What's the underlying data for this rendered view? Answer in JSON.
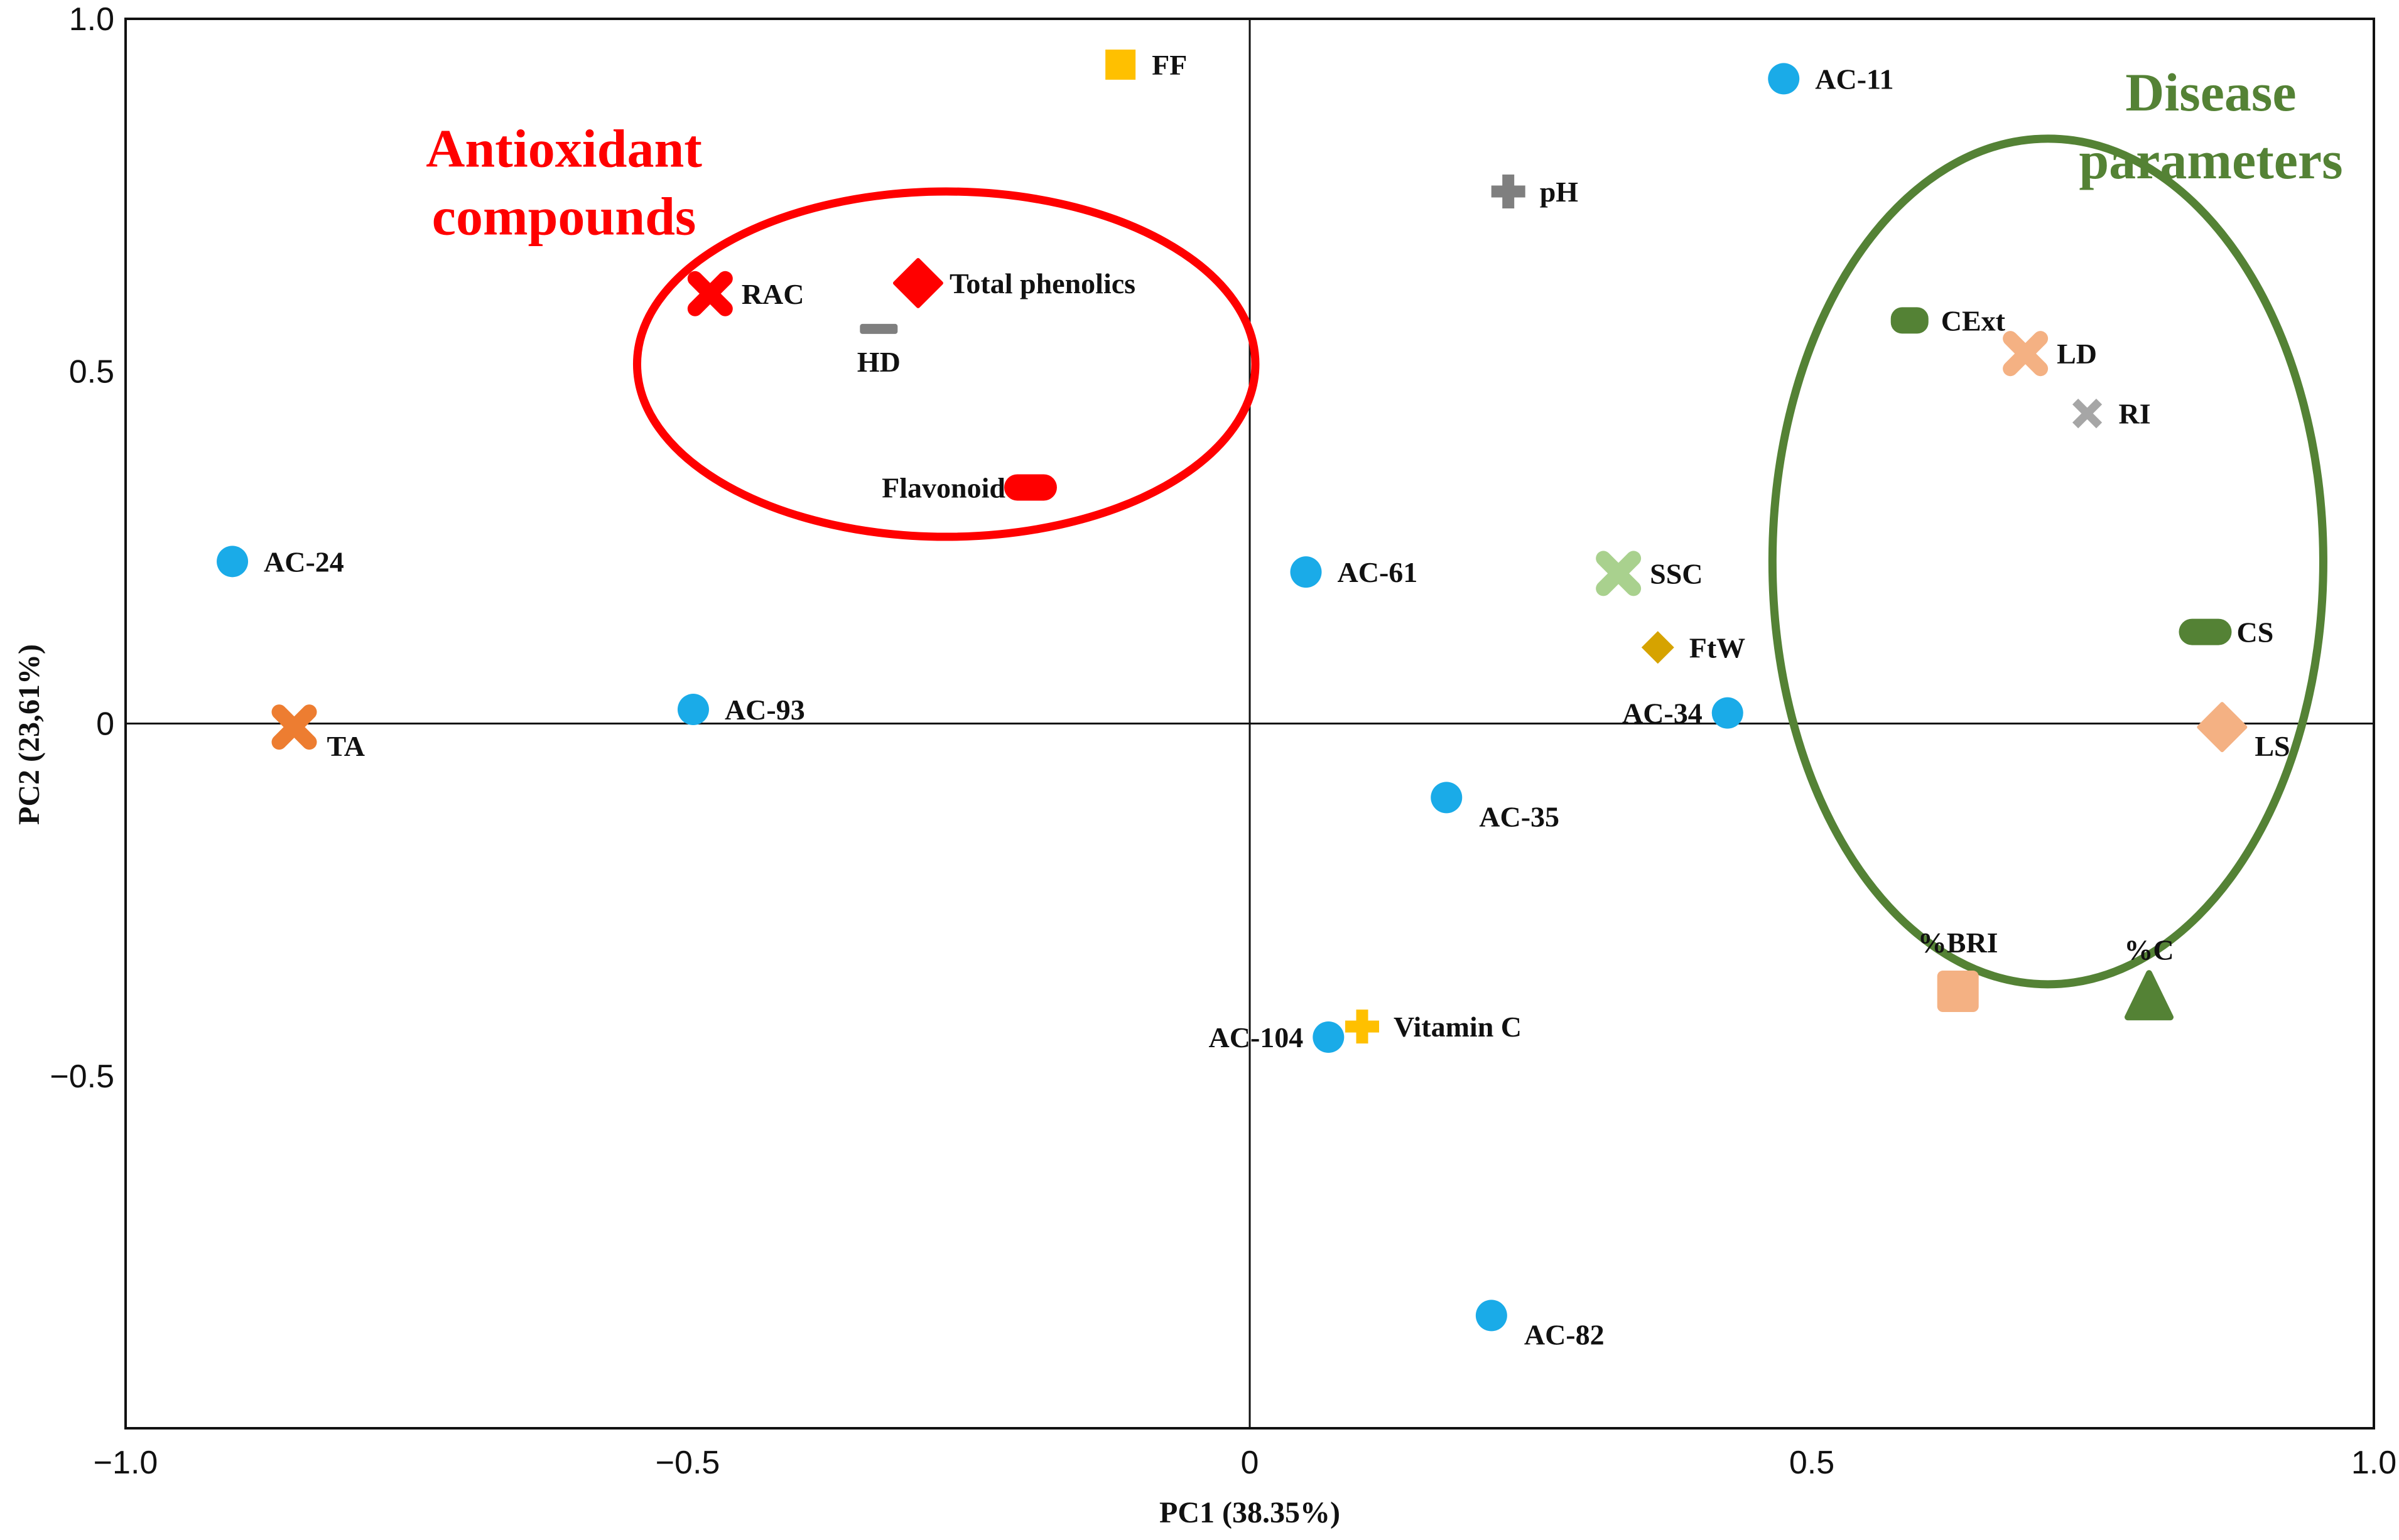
{
  "chart_data": {
    "type": "scatter",
    "title": "",
    "xlabel": "PC1 (38.35%)",
    "ylabel": "PC2 (23,61%)",
    "xlim": [
      -1.0,
      1.0
    ],
    "ylim": [
      -1.0,
      1.0
    ],
    "grid": false,
    "x_ticks": [
      {
        "value": -1.0,
        "label": "−1.0"
      },
      {
        "value": -0.5,
        "label": "−0.5"
      },
      {
        "value": 0,
        "label": "0"
      },
      {
        "value": 0.5,
        "label": "0.5"
      },
      {
        "value": 1.0,
        "label": "1.0"
      }
    ],
    "y_ticks": [
      {
        "value": 1.0,
        "label": "1.0"
      },
      {
        "value": 0.5,
        "label": "0.5"
      },
      {
        "value": 0,
        "label": "0"
      },
      {
        "value": -0.5,
        "label": "−0.5"
      }
    ],
    "colors": {
      "accession": "#1AABE8",
      "red": "#FF0000",
      "darkgreen": "#548235",
      "lightgreen": "#A9D18E",
      "salmon": "#F4B183",
      "orange": "#ED7D31",
      "gold": "#FFC000",
      "mustard": "#D6A300",
      "gray": "#7F7F7F",
      "lightgray": "#A6A6A6"
    },
    "points": [
      {
        "label": "AC-11",
        "x": 0.475,
        "y": 0.915,
        "shape": "circle",
        "color": "accession",
        "anchor": "right"
      },
      {
        "label": "AC-24",
        "x": -0.905,
        "y": 0.23,
        "shape": "circle",
        "color": "accession",
        "anchor": "right"
      },
      {
        "label": "AC-93",
        "x": -0.495,
        "y": 0.02,
        "shape": "circle",
        "color": "accession",
        "anchor": "right"
      },
      {
        "label": "AC-61",
        "x": 0.05,
        "y": 0.215,
        "shape": "circle",
        "color": "accession",
        "anchor": "right"
      },
      {
        "label": "AC-34",
        "x": 0.425,
        "y": 0.015,
        "shape": "circle",
        "color": "accession",
        "anchor": "left"
      },
      {
        "label": "AC-35",
        "x": 0.175,
        "y": -0.105,
        "shape": "circle",
        "color": "accession",
        "anchor": "right-below"
      },
      {
        "label": "AC-104",
        "x": 0.07,
        "y": -0.445,
        "shape": "circle",
        "color": "accession",
        "anchor": "left"
      },
      {
        "label": "AC-82",
        "x": 0.215,
        "y": -0.84,
        "shape": "circle",
        "color": "accession",
        "anchor": "right-below"
      },
      {
        "label": "FF",
        "x": -0.115,
        "y": 0.935,
        "shape": "square",
        "color": "gold",
        "anchor": "right"
      },
      {
        "label": "pH",
        "x": 0.23,
        "y": 0.755,
        "shape": "plus",
        "color": "gray",
        "anchor": "right"
      },
      {
        "label": "RAC",
        "x": -0.48,
        "y": 0.61,
        "shape": "cross",
        "color": "red",
        "anchor": "right"
      },
      {
        "label": "Total phenolics",
        "x": -0.295,
        "y": 0.625,
        "shape": "diamond",
        "color": "red",
        "anchor": "right"
      },
      {
        "label": "HD",
        "x": -0.33,
        "y": 0.56,
        "shape": "dash",
        "color": "gray",
        "anchor": "below"
      },
      {
        "label": "Flavonoid",
        "x": -0.195,
        "y": 0.335,
        "shape": "pill",
        "color": "red",
        "anchor": "left"
      },
      {
        "label": "SSC",
        "x": 0.328,
        "y": 0.213,
        "shape": "cross",
        "color": "lightgreen",
        "anchor": "right"
      },
      {
        "label": "FtW",
        "x": 0.363,
        "y": 0.108,
        "shape": "diamond-small",
        "color": "mustard",
        "anchor": "right"
      },
      {
        "label": "TA",
        "x": -0.85,
        "y": -0.005,
        "shape": "cross",
        "color": "orange",
        "anchor": "right-below"
      },
      {
        "label": "Vitamin C",
        "x": 0.1,
        "y": -0.43,
        "shape": "plus",
        "color": "gold",
        "anchor": "right"
      },
      {
        "label": "CExt",
        "x": 0.587,
        "y": 0.572,
        "shape": "pill-small",
        "color": "darkgreen",
        "anchor": "right"
      },
      {
        "label": "LD",
        "x": 0.69,
        "y": 0.525,
        "shape": "cross",
        "color": "salmon",
        "anchor": "right"
      },
      {
        "label": "RI",
        "x": 0.745,
        "y": 0.44,
        "shape": "x",
        "color": "lightgray",
        "anchor": "right"
      },
      {
        "label": "CS",
        "x": 0.85,
        "y": 0.13,
        "shape": "pill",
        "color": "darkgreen",
        "anchor": "right"
      },
      {
        "label": "LS",
        "x": 0.865,
        "y": -0.005,
        "shape": "diamond",
        "color": "salmon",
        "anchor": "right-below"
      },
      {
        "label": "%BRI",
        "x": 0.63,
        "y": -0.38,
        "shape": "rounded-square",
        "color": "salmon",
        "anchor": "above"
      },
      {
        "label": "%C",
        "x": 0.8,
        "y": -0.39,
        "shape": "triangle",
        "color": "darkgreen",
        "anchor": "above"
      }
    ],
    "groups": [
      {
        "label_lines": [
          "Antioxidant",
          "compounds"
        ],
        "color": "#FF0000",
        "center": [
          -0.27,
          0.51
        ],
        "radii": [
          0.275,
          0.245
        ],
        "label_anchor": [
          -0.61,
          0.79
        ]
      },
      {
        "label_lines": [
          "Disease",
          "parameters"
        ],
        "color": "#548235",
        "center": [
          0.71,
          0.23
        ],
        "radii": [
          0.245,
          0.6
        ],
        "label_anchor": [
          0.855,
          0.87
        ]
      }
    ]
  }
}
